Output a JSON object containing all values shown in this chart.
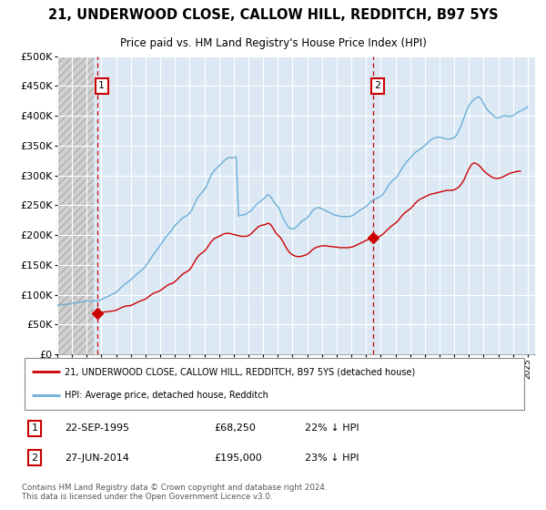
{
  "title": "21, UNDERWOOD CLOSE, CALLOW HILL, REDDITCH, B97 5YS",
  "subtitle": "Price paid vs. HM Land Registry's House Price Index (HPI)",
  "ylim": [
    0,
    500000
  ],
  "yticks": [
    0,
    50000,
    100000,
    150000,
    200000,
    250000,
    300000,
    350000,
    400000,
    450000,
    500000
  ],
  "xlim_start": 1993.0,
  "xlim_end": 2025.5,
  "hpi_color": "#6baed6",
  "price_color": "#cc0000",
  "bg_color": "#dce9f5",
  "hatch_color": "#c8c8c8",
  "grid_color": "#ffffff",
  "transaction1_year": 1995.72,
  "transaction1_price": 68250,
  "transaction2_year": 2014.49,
  "transaction2_price": 195000,
  "hatch_end_year": 1995.5,
  "legend_label1": "21, UNDERWOOD CLOSE, CALLOW HILL, REDDITCH, B97 5YS (detached house)",
  "legend_label2": "HPI: Average price, detached house, Redditch",
  "table_row1": [
    "1",
    "22-SEP-1995",
    "£68,250",
    "22% ↓ HPI"
  ],
  "table_row2": [
    "2",
    "27-JUN-2014",
    "£195,000",
    "23% ↓ HPI"
  ],
  "footnote": "Contains HM Land Registry data © Crown copyright and database right 2024.\nThis data is licensed under the Open Government Licence v3.0.",
  "hpi_years": [
    1993.0,
    1993.08,
    1993.17,
    1993.25,
    1993.33,
    1993.42,
    1993.5,
    1993.58,
    1993.67,
    1993.75,
    1993.83,
    1993.92,
    1994.0,
    1994.08,
    1994.17,
    1994.25,
    1994.33,
    1994.42,
    1994.5,
    1994.58,
    1994.67,
    1994.75,
    1994.83,
    1994.92,
    1995.0,
    1995.08,
    1995.17,
    1995.25,
    1995.33,
    1995.42,
    1995.5,
    1995.58,
    1995.67,
    1995.75,
    1995.83,
    1995.92,
    1996.0,
    1996.08,
    1996.17,
    1996.25,
    1996.33,
    1996.42,
    1996.5,
    1996.58,
    1996.67,
    1996.75,
    1996.83,
    1996.92,
    1997.0,
    1997.17,
    1997.33,
    1997.5,
    1997.67,
    1997.83,
    1998.0,
    1998.17,
    1998.33,
    1998.5,
    1998.67,
    1998.83,
    1999.0,
    1999.17,
    1999.33,
    1999.5,
    1999.67,
    1999.83,
    2000.0,
    2000.17,
    2000.33,
    2000.5,
    2000.67,
    2000.83,
    2001.0,
    2001.17,
    2001.33,
    2001.5,
    2001.67,
    2001.83,
    2002.0,
    2002.17,
    2002.33,
    2002.5,
    2002.67,
    2002.83,
    2003.0,
    2003.17,
    2003.33,
    2003.5,
    2003.67,
    2003.83,
    2004.0,
    2004.17,
    2004.33,
    2004.5,
    2004.67,
    2004.83,
    2005.0,
    2005.17,
    2005.33,
    2005.5,
    2005.67,
    2005.83,
    2006.0,
    2006.17,
    2006.33,
    2006.5,
    2006.67,
    2006.83,
    2007.0,
    2007.17,
    2007.33,
    2007.5,
    2007.67,
    2007.83,
    2008.0,
    2008.17,
    2008.33,
    2008.5,
    2008.67,
    2008.83,
    2009.0,
    2009.17,
    2009.33,
    2009.5,
    2009.67,
    2009.83,
    2010.0,
    2010.17,
    2010.33,
    2010.5,
    2010.67,
    2010.83,
    2011.0,
    2011.17,
    2011.33,
    2011.5,
    2011.67,
    2011.83,
    2012.0,
    2012.17,
    2012.33,
    2012.5,
    2012.67,
    2012.83,
    2013.0,
    2013.17,
    2013.33,
    2013.5,
    2013.67,
    2013.83,
    2014.0,
    2014.17,
    2014.33,
    2014.5,
    2014.67,
    2014.83,
    2015.0,
    2015.17,
    2015.33,
    2015.5,
    2015.67,
    2015.83,
    2016.0,
    2016.17,
    2016.33,
    2016.5,
    2016.67,
    2016.83,
    2017.0,
    2017.17,
    2017.33,
    2017.5,
    2017.67,
    2017.83,
    2018.0,
    2018.17,
    2018.33,
    2018.5,
    2018.67,
    2018.83,
    2019.0,
    2019.17,
    2019.33,
    2019.5,
    2019.67,
    2019.83,
    2020.0,
    2020.17,
    2020.33,
    2020.5,
    2020.67,
    2020.83,
    2021.0,
    2021.17,
    2021.33,
    2021.5,
    2021.67,
    2021.83,
    2022.0,
    2022.17,
    2022.33,
    2022.5,
    2022.67,
    2022.83,
    2023.0,
    2023.17,
    2023.33,
    2023.5,
    2023.67,
    2023.83,
    2024.0,
    2024.17,
    2024.33,
    2024.5,
    2024.67,
    2024.83,
    2025.0
  ],
  "hpi_values": [
    82000,
    83000,
    84000,
    83500,
    84000,
    83000,
    83500,
    84000,
    84500,
    84000,
    84500,
    85000,
    85500,
    86000,
    86000,
    86500,
    87000,
    87000,
    87500,
    88000,
    88000,
    88500,
    89000,
    89500,
    90000,
    89500,
    89000,
    89500,
    90000,
    90000,
    90500,
    90000,
    89500,
    90000,
    90500,
    91000,
    92000,
    93000,
    94000,
    95000,
    96000,
    97000,
    98000,
    99000,
    100000,
    101000,
    102000,
    103000,
    104000,
    108000,
    112000,
    116000,
    119000,
    122000,
    125000,
    129000,
    133000,
    137000,
    140000,
    143000,
    148000,
    154000,
    160000,
    166000,
    172000,
    177000,
    183000,
    189000,
    195000,
    200000,
    205000,
    210000,
    216000,
    220000,
    224000,
    228000,
    231000,
    233000,
    237000,
    243000,
    252000,
    261000,
    267000,
    271000,
    276000,
    283000,
    293000,
    302000,
    308000,
    312000,
    316000,
    320000,
    324000,
    328000,
    330000,
    330000,
    330000,
    331000,
    232000,
    233000,
    234000,
    235000,
    238000,
    241000,
    245000,
    250000,
    254000,
    257000,
    260000,
    264000,
    268000,
    265000,
    258000,
    252000,
    248000,
    240000,
    230000,
    222000,
    215000,
    211000,
    210000,
    212000,
    215000,
    220000,
    224000,
    226000,
    229000,
    234000,
    240000,
    244000,
    246000,
    246000,
    244000,
    242000,
    240000,
    238000,
    236000,
    234000,
    233000,
    232000,
    231000,
    231000,
    231000,
    231000,
    232000,
    234000,
    237000,
    240000,
    243000,
    245000,
    248000,
    252000,
    256000,
    259000,
    261000,
    263000,
    265000,
    269000,
    275000,
    282000,
    288000,
    292000,
    295000,
    300000,
    307000,
    314000,
    320000,
    325000,
    329000,
    334000,
    338000,
    341000,
    344000,
    347000,
    350000,
    354000,
    358000,
    361000,
    363000,
    364000,
    364000,
    363000,
    362000,
    361000,
    361000,
    362000,
    363000,
    368000,
    376000,
    386000,
    397000,
    408000,
    417000,
    423000,
    427000,
    430000,
    432000,
    428000,
    420000,
    413000,
    408000,
    404000,
    400000,
    397000,
    396000,
    398000,
    400000,
    400000,
    399000,
    399000,
    400000,
    403000,
    406000,
    408000,
    410000,
    412000,
    415000
  ],
  "price_years": [
    1995.72,
    1995.83,
    1996.0,
    1996.17,
    1996.33,
    1996.5,
    1996.67,
    1996.83,
    1997.0,
    1997.17,
    1997.33,
    1997.5,
    1997.67,
    1997.83,
    1998.0,
    1998.17,
    1998.33,
    1998.5,
    1998.67,
    1998.83,
    1999.0,
    1999.17,
    1999.33,
    1999.5,
    1999.67,
    1999.83,
    2000.0,
    2000.17,
    2000.33,
    2000.5,
    2000.67,
    2000.83,
    2001.0,
    2001.17,
    2001.33,
    2001.5,
    2001.67,
    2001.83,
    2002.0,
    2002.17,
    2002.33,
    2002.5,
    2002.67,
    2002.83,
    2003.0,
    2003.17,
    2003.33,
    2003.5,
    2003.67,
    2003.83,
    2004.0,
    2004.17,
    2004.33,
    2004.5,
    2004.67,
    2004.83,
    2005.0,
    2005.17,
    2005.33,
    2005.5,
    2005.67,
    2005.83,
    2006.0,
    2006.17,
    2006.33,
    2006.5,
    2006.67,
    2006.83,
    2007.0,
    2007.17,
    2007.33,
    2007.5,
    2007.67,
    2007.83,
    2008.0,
    2008.17,
    2008.33,
    2008.5,
    2008.67,
    2008.83,
    2009.0,
    2009.17,
    2009.33,
    2009.5,
    2009.67,
    2009.83,
    2010.0,
    2010.17,
    2010.33,
    2010.5,
    2010.67,
    2010.83,
    2011.0,
    2011.17,
    2011.33,
    2011.5,
    2011.67,
    2011.83,
    2012.0,
    2012.17,
    2012.33,
    2012.5,
    2012.67,
    2012.83,
    2013.0,
    2013.17,
    2013.33,
    2013.5,
    2013.67,
    2013.83,
    2014.0,
    2014.17,
    2014.33,
    2014.49,
    2014.67,
    2014.83,
    2015.0,
    2015.17,
    2015.33,
    2015.5,
    2015.67,
    2015.83,
    2016.0,
    2016.17,
    2016.33,
    2016.5,
    2016.67,
    2016.83,
    2017.0,
    2017.17,
    2017.33,
    2017.5,
    2017.67,
    2017.83,
    2018.0,
    2018.17,
    2018.33,
    2018.5,
    2018.67,
    2018.83,
    2019.0,
    2019.17,
    2019.33,
    2019.5,
    2019.67,
    2019.83,
    2020.0,
    2020.17,
    2020.33,
    2020.5,
    2020.67,
    2020.83,
    2021.0,
    2021.17,
    2021.33,
    2021.5,
    2021.67,
    2021.83,
    2022.0,
    2022.17,
    2022.33,
    2022.5,
    2022.67,
    2022.83,
    2023.0,
    2023.17,
    2023.33,
    2023.5,
    2023.67,
    2023.83,
    2024.0,
    2024.17,
    2024.33,
    2024.5
  ],
  "price_values": [
    68250,
    69000,
    70000,
    71000,
    71500,
    72000,
    72500,
    73000,
    74000,
    76000,
    78000,
    80000,
    81000,
    81500,
    82000,
    84000,
    86000,
    88000,
    90000,
    91000,
    93000,
    96000,
    99000,
    102000,
    104000,
    105000,
    107000,
    110000,
    113000,
    116000,
    118000,
    119000,
    122000,
    126000,
    130000,
    134000,
    137000,
    139000,
    142000,
    148000,
    155000,
    162000,
    167000,
    170000,
    173000,
    178000,
    184000,
    190000,
    194000,
    196000,
    198000,
    200000,
    202000,
    203000,
    203000,
    202000,
    201000,
    200000,
    199000,
    198000,
    198000,
    198000,
    199000,
    202000,
    206000,
    210000,
    214000,
    216000,
    217000,
    218000,
    220000,
    218000,
    212000,
    205000,
    200000,
    196000,
    190000,
    182000,
    175000,
    170000,
    167000,
    165000,
    164000,
    164000,
    165000,
    166000,
    168000,
    171000,
    175000,
    178000,
    180000,
    181000,
    182000,
    182000,
    182000,
    181000,
    181000,
    180000,
    180000,
    179000,
    179000,
    179000,
    179000,
    179000,
    180000,
    181000,
    183000,
    185000,
    187000,
    189000,
    191000,
    193000,
    195000,
    195000,
    196000,
    197000,
    199000,
    202000,
    206000,
    210000,
    214000,
    217000,
    220000,
    224000,
    229000,
    234000,
    238000,
    241000,
    244000,
    248000,
    253000,
    257000,
    260000,
    262000,
    264000,
    266000,
    268000,
    269000,
    270000,
    271000,
    272000,
    273000,
    274000,
    275000,
    275000,
    275000,
    276000,
    278000,
    281000,
    286000,
    293000,
    302000,
    311000,
    318000,
    321000,
    320000,
    317000,
    313000,
    308000,
    304000,
    301000,
    298000,
    296000,
    295000,
    295000,
    296000,
    298000,
    300000,
    302000,
    304000,
    305000,
    306000,
    307000,
    307000
  ]
}
